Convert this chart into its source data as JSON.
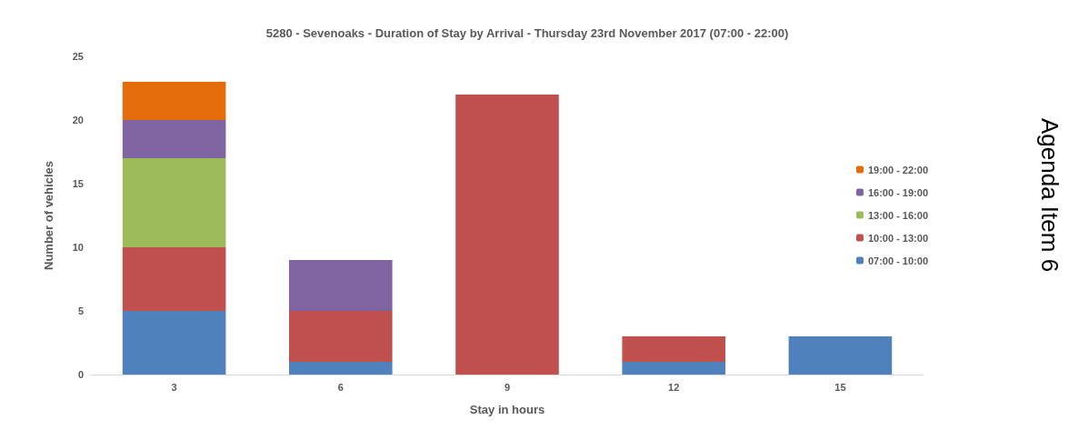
{
  "chart_data": {
    "type": "bar",
    "title": "5280 - Sevenoaks - Duration of Stay by Arrival - Thursday 23rd November 2017 (07:00 - 22:00)",
    "xlabel": "Stay in hours",
    "ylabel": "Number of vehicles",
    "categories": [
      "3",
      "6",
      "9",
      "12",
      "15"
    ],
    "stacked": true,
    "series": [
      {
        "name": "07:00 - 10:00",
        "color": "#4f81bd",
        "values": [
          5,
          1,
          0,
          1,
          3
        ]
      },
      {
        "name": "10:00 - 13:00",
        "color": "#c0504d",
        "values": [
          5,
          4,
          22,
          2,
          0
        ]
      },
      {
        "name": "13:00 - 16:00",
        "color": "#9bbb59",
        "values": [
          7,
          0,
          0,
          0,
          0
        ]
      },
      {
        "name": "16:00 - 19:00",
        "color": "#8064a2",
        "values": [
          3,
          4,
          0,
          0,
          0
        ]
      },
      {
        "name": "19:00 - 22:00",
        "color": "#e46c0a",
        "values": [
          3,
          0,
          0,
          0,
          0
        ]
      }
    ],
    "ylim": [
      0,
      25
    ],
    "yticks": [
      0,
      5,
      10,
      15,
      20,
      25
    ],
    "grid": false,
    "legend": "right",
    "annotations": [
      "Agenda Item 6"
    ]
  }
}
